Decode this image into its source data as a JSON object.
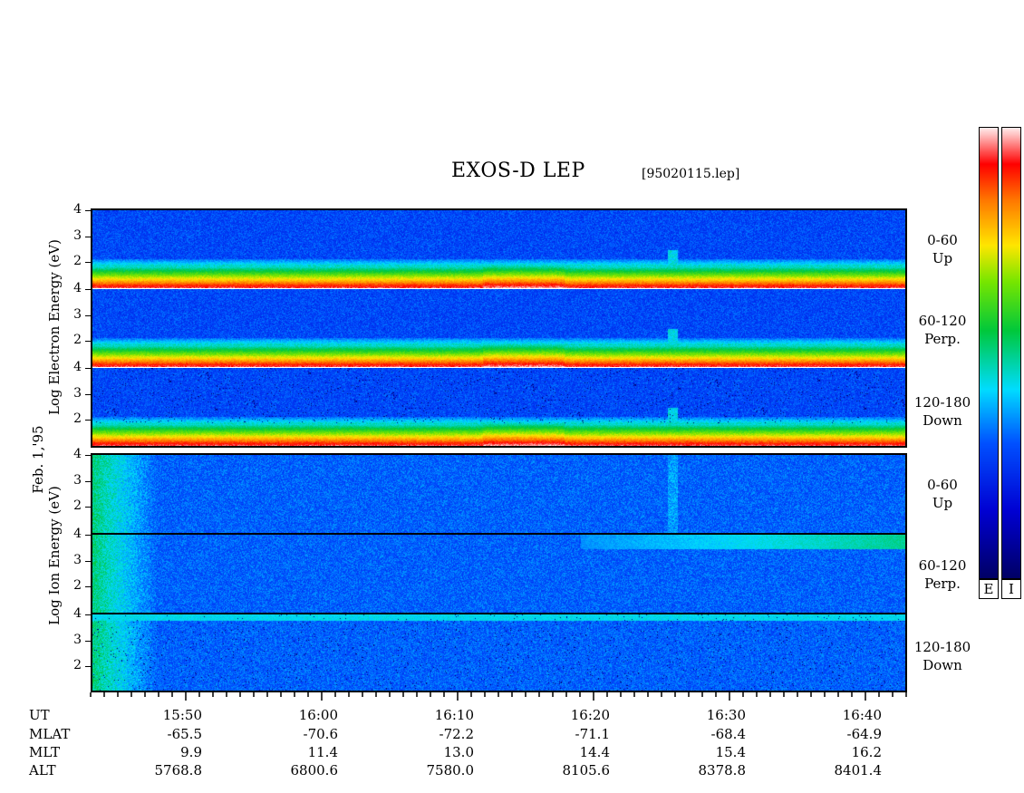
{
  "header": {
    "title": "EXOS-D LEP",
    "file": "[95020115.lep]"
  },
  "date_label": "Feb. 1,'95",
  "chart_data": {
    "type": "heatmap",
    "electron_ylabel": "Log  Electron  Energy (eV)",
    "ion_ylabel": "Log  Ion  Energy (eV)",
    "yticks": [
      "4",
      "3",
      "2"
    ],
    "ylim": [
      1,
      4
    ],
    "channels": [
      {
        "species": "electron",
        "pitch": "0-60",
        "dir": "Up"
      },
      {
        "species": "electron",
        "pitch": "60-120",
        "dir": "Perp."
      },
      {
        "species": "electron",
        "pitch": "120-180",
        "dir": "Down"
      },
      {
        "species": "ion",
        "pitch": "0-60",
        "dir": "Up"
      },
      {
        "species": "ion",
        "pitch": "60-120",
        "dir": "Perp."
      },
      {
        "species": "ion",
        "pitch": "120-180",
        "dir": "Down"
      }
    ],
    "x_ticks": [
      "15:50",
      "16:00",
      "16:10",
      "16:20",
      "16:30",
      "16:40"
    ],
    "xlim": [
      "15:43",
      "16:43"
    ],
    "ephemeris": {
      "UT": [
        "15:50",
        "16:00",
        "16:10",
        "16:20",
        "16:30",
        "16:40"
      ],
      "MLAT": [
        "-65.5",
        "-70.6",
        "-72.2",
        "-71.1",
        "-68.4",
        "-64.9"
      ],
      "MLT": [
        "9.9",
        "11.4",
        "13.0",
        "14.4",
        "15.4",
        "16.2"
      ],
      "ALT": [
        "5768.8",
        "6800.6",
        "7580.0",
        "8105.6",
        "8378.8",
        "8401.4"
      ]
    },
    "row_labels": [
      "UT",
      "MLAT",
      "MLT",
      "ALT"
    ],
    "colorbar_labels": [
      "E",
      "I"
    ]
  },
  "colors": {
    "background": "#0a1aa0",
    "scale_low": "#000080",
    "scale_high": "#fff0f0"
  }
}
